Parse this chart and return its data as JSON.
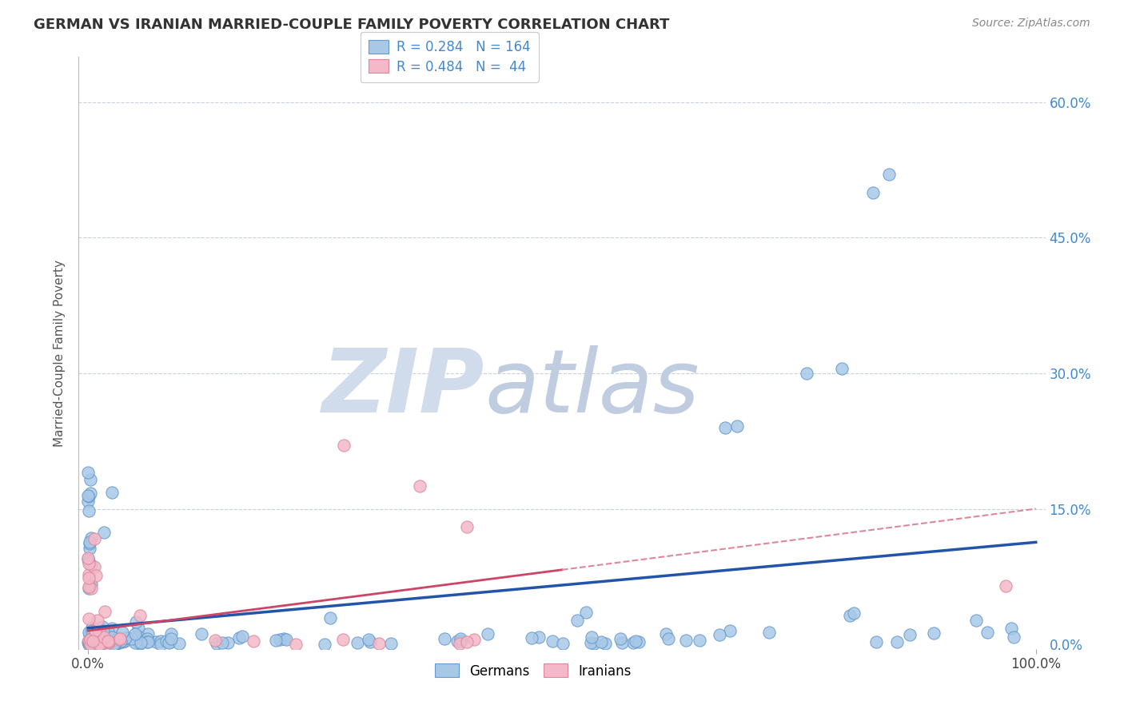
{
  "title": "GERMAN VS IRANIAN MARRIED-COUPLE FAMILY POVERTY CORRELATION CHART",
  "source": "Source: ZipAtlas.com",
  "ylabel_label": "Married-Couple Family Poverty",
  "german_R": 0.284,
  "german_N": 164,
  "iranian_R": 0.484,
  "iranian_N": 44,
  "german_color": "#a8c8e8",
  "german_edge_color": "#6699cc",
  "iranian_color": "#f4b8c8",
  "iranian_edge_color": "#dd8899",
  "german_line_color": "#2255aa",
  "iranian_line_color": "#cc4466",
  "iranian_dash_color": "#dd8899",
  "background_color": "#ffffff",
  "grid_color": "#c8d0dc",
  "watermark_zip_color": "#d0dcec",
  "watermark_atlas_color": "#c0cce0",
  "legend_german_color": "#a8c8e8",
  "legend_iranian_color": "#f4b8c8",
  "ytick_color": "#4488cc",
  "xtick_color": "#444444"
}
